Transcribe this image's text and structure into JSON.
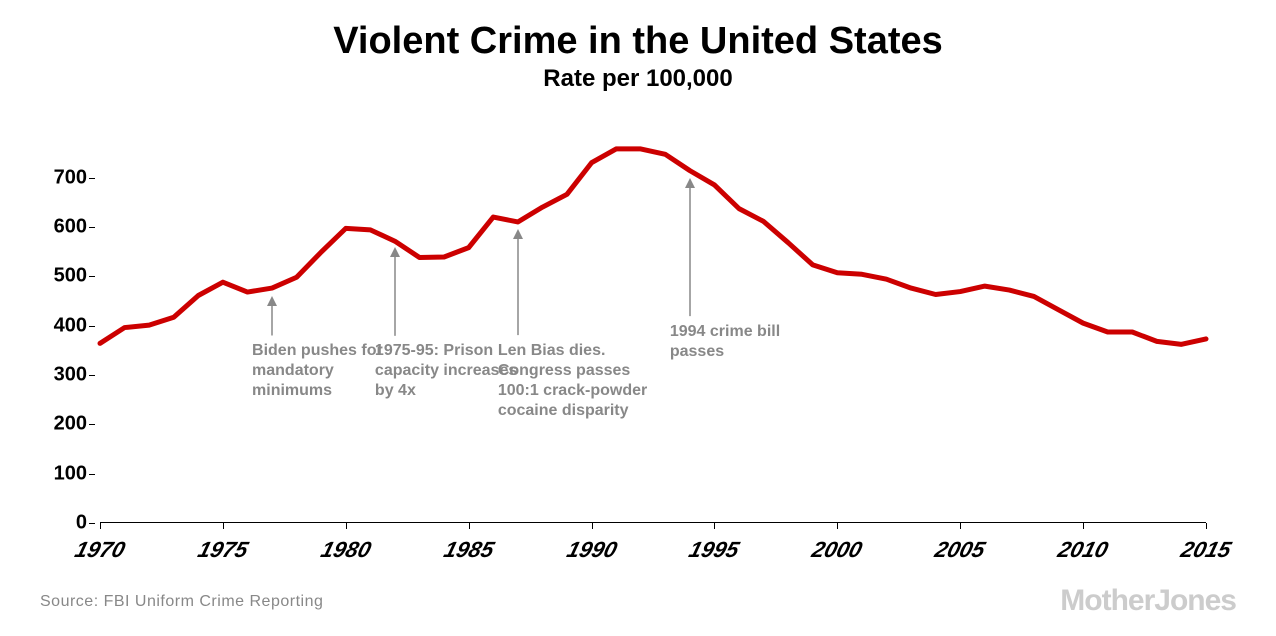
{
  "title": "Violent Crime in the United States",
  "subtitle": "Rate per 100,000",
  "title_fontsize": 38,
  "subtitle_fontsize": 24,
  "chart": {
    "type": "line",
    "line_color": "#cc0000",
    "line_width": 5,
    "background_color": "#ffffff",
    "xlim": [
      1970,
      2015
    ],
    "ylim": [
      0,
      770
    ],
    "y_ticks": [
      0,
      100,
      200,
      300,
      400,
      500,
      600,
      700
    ],
    "y_tick_fontsize": 20,
    "x_ticks": [
      1970,
      1975,
      1980,
      1985,
      1990,
      1995,
      2000,
      2005,
      2010,
      2015
    ],
    "x_tick_fontsize": 22,
    "years": [
      1970,
      1971,
      1972,
      1973,
      1974,
      1975,
      1976,
      1977,
      1978,
      1979,
      1980,
      1981,
      1982,
      1983,
      1984,
      1985,
      1986,
      1987,
      1988,
      1989,
      1990,
      1991,
      1992,
      1993,
      1994,
      1995,
      1996,
      1997,
      1998,
      1999,
      2000,
      2001,
      2002,
      2003,
      2004,
      2005,
      2006,
      2007,
      2008,
      2009,
      2010,
      2011,
      2012,
      2013,
      2014,
      2015
    ],
    "values": [
      364,
      396,
      401,
      417,
      461,
      488,
      468,
      476,
      498,
      549,
      597,
      594,
      571,
      538,
      539,
      558,
      620,
      610,
      640,
      666,
      730,
      758,
      758,
      747,
      714,
      685,
      637,
      611,
      568,
      523,
      507,
      504,
      494,
      476,
      463,
      469,
      480,
      472,
      459,
      432,
      405,
      387,
      387,
      368,
      362,
      373
    ]
  },
  "annotations": [
    {
      "year": 1977,
      "arrow_top_y": 460,
      "arrow_bottom_y": 380,
      "text": "Biden pushes for mandatory minimums"
    },
    {
      "year": 1982,
      "arrow_top_y": 560,
      "arrow_bottom_y": 380,
      "text": "1975-95: Prison capacity increases by 4x"
    },
    {
      "year": 1987,
      "arrow_top_y": 595,
      "arrow_bottom_y": 380,
      "text": "Len Bias dies. Congress passes 100:1 crack-powder cocaine disparity"
    },
    {
      "year": 1994,
      "arrow_top_y": 700,
      "arrow_bottom_y": 420,
      "text": "1994 crime bill passes"
    }
  ],
  "annotation_color": "#888888",
  "annotation_fontsize": 16,
  "source": "Source: FBI Uniform Crime Reporting",
  "source_fontsize": 16,
  "logo": "MotherJones",
  "logo_fontsize": 30
}
